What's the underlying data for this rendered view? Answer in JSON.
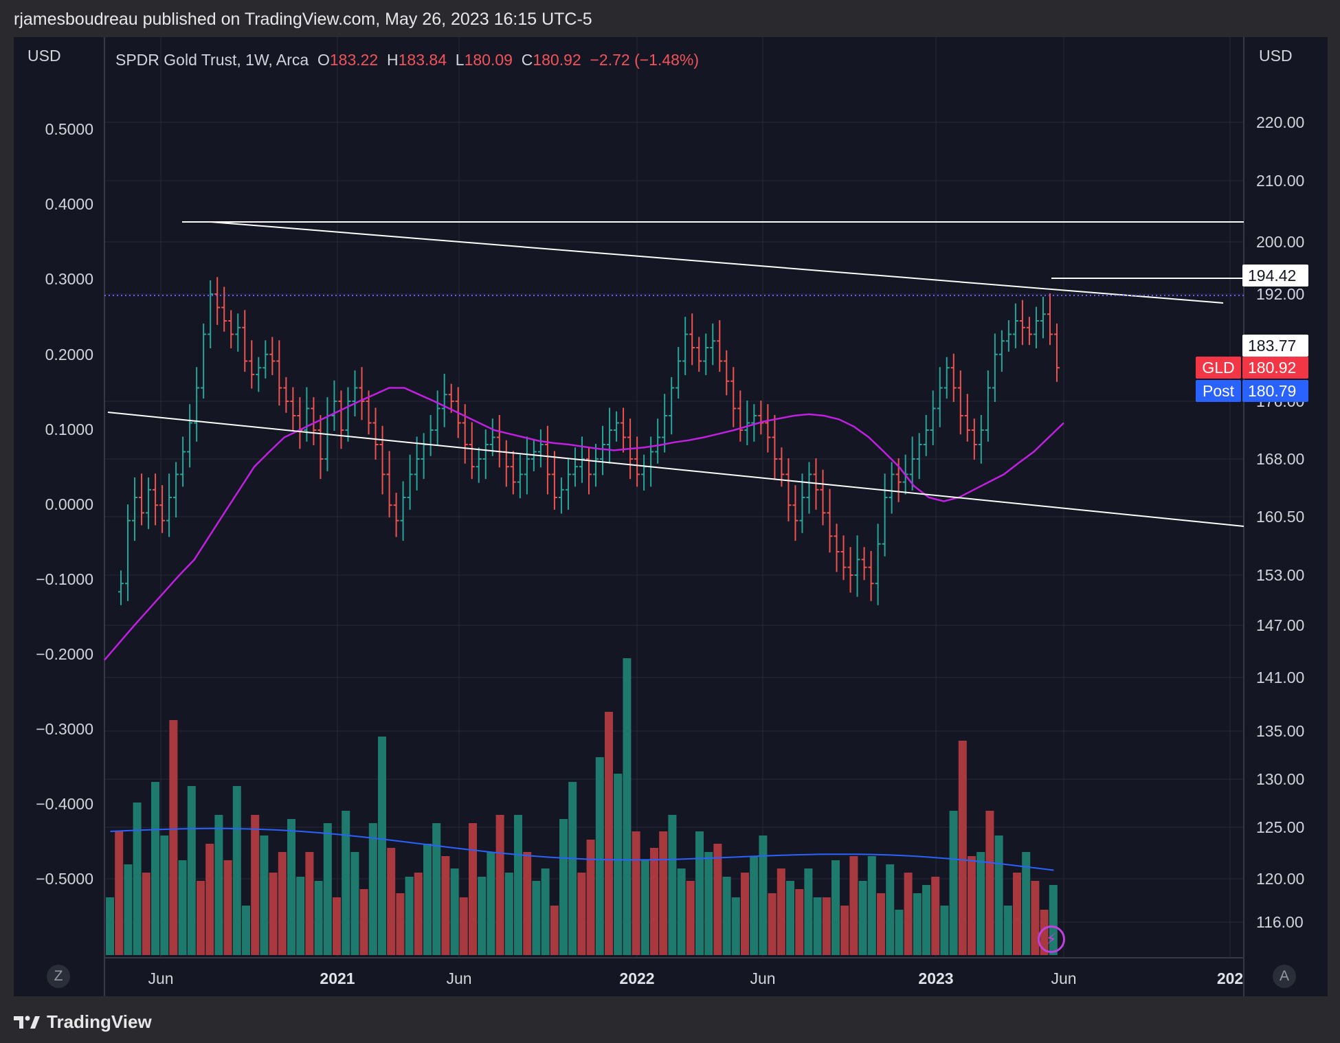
{
  "header": {
    "published_text": "rjamesboudreau published on TradingView.com, May 26, 2023 16:15 UTC-5"
  },
  "footer": {
    "brand": "TradingView"
  },
  "legend": {
    "symbol": "SPDR Gold Trust, 1W, Arca",
    "o_label": "O",
    "o_value": "183.22",
    "h_label": "H",
    "h_value": "183.84",
    "l_label": "L",
    "l_value": "180.09",
    "c_label": "C",
    "c_value": "180.92",
    "change": "−2.72 (−1.48%)"
  },
  "axes": {
    "left_unit": "USD",
    "right_unit": "USD",
    "z_button": "Z",
    "a_button": "A"
  },
  "badges": {
    "level_top": "194.42",
    "level_mid": "183.77",
    "gld_label": "GLD",
    "gld_price": "180.92",
    "post_label": "Post",
    "post_price": "180.79"
  },
  "colors": {
    "background": "#141723",
    "up": "#26a69a",
    "down": "#ef5350",
    "up_volume": "#1f7a6e",
    "down_volume": "#a8393f",
    "ma": "#c020e0",
    "volume_ma": "#2962ff",
    "trendline": "#ffffff",
    "gld_badge": "#f23645",
    "post_badge": "#2962ff"
  },
  "icons": {
    "flash": "lightning-icon",
    "logo": "tradingview-logo-icon"
  },
  "chart_data": {
    "type": "ohlc",
    "title": "SPDR Gold Trust, 1W, Arca",
    "interval": "1W",
    "x_ticks": [
      "Jun",
      "2021",
      "Jun",
      "2022",
      "Jun",
      "2023",
      "Jun",
      "202"
    ],
    "right_ticks": [
      "220.00",
      "210.00",
      "200.00",
      "192.00",
      "176.00",
      "168.00",
      "160.50",
      "153.00",
      "147.00",
      "141.00",
      "135.00",
      "130.00",
      "125.00",
      "120.00",
      "116.00"
    ],
    "left_ticks": [
      "0.5000",
      "0.4000",
      "0.3000",
      "0.2000",
      "0.1000",
      "0.0000",
      "−0.1000",
      "−0.2000",
      "−0.3000",
      "−0.4000",
      "−0.5000"
    ],
    "last_price": 180.92,
    "post_price": 180.79,
    "horizontal_levels": [
      194.42,
      183.77
    ],
    "close_path": [
      152,
      160,
      163,
      161,
      164,
      162,
      160,
      163,
      166,
      169,
      173,
      178,
      186,
      192,
      190,
      188,
      186,
      187,
      182,
      180,
      181,
      183,
      182,
      178,
      176,
      174,
      172,
      175,
      172,
      168,
      174,
      176,
      172,
      176,
      178,
      176,
      173,
      170,
      166,
      162,
      160,
      163,
      166,
      168,
      170,
      172,
      175,
      177,
      176,
      173,
      170,
      167,
      168,
      170,
      171,
      169,
      167,
      165,
      166,
      168,
      169,
      170,
      166,
      163,
      164,
      166,
      167,
      168,
      166,
      168,
      170,
      172,
      173,
      171,
      168,
      166,
      167,
      169,
      171,
      174,
      178,
      182,
      186,
      184,
      182,
      184,
      185,
      182,
      179,
      175,
      172,
      173,
      174,
      173,
      171,
      168,
      166,
      162,
      160,
      163,
      166,
      164,
      161,
      158,
      156,
      154,
      153,
      155,
      154,
      152,
      157,
      163,
      166,
      165,
      166,
      168,
      170,
      172,
      175,
      178,
      181,
      178,
      174,
      172,
      170,
      172,
      178,
      183,
      185,
      186,
      188,
      187,
      186,
      188,
      189,
      186,
      181
    ],
    "ma_path": [
      143,
      145,
      147,
      149,
      151,
      153,
      155,
      158,
      161,
      164,
      167,
      169,
      171,
      172,
      173,
      174,
      175,
      176,
      177,
      178,
      178,
      177,
      176,
      175,
      174,
      173,
      172,
      171.5,
      171,
      170.5,
      170.2,
      170,
      169.7,
      169.4,
      169.2,
      169.4,
      169.6,
      169.9,
      170.3,
      170.6,
      171,
      171.5,
      172,
      172.6,
      173.2,
      173.6,
      174,
      174.2,
      174,
      173.5,
      172.5,
      171,
      169,
      167,
      164.5,
      163,
      162.5,
      163,
      164,
      165,
      166,
      167.5,
      169,
      171,
      173
    ],
    "volume_levels": [
      0.14,
      0.3,
      0.22,
      0.37,
      0.2,
      0.42,
      0.29,
      0.57,
      0.23,
      0.41,
      0.18,
      0.27,
      0.34,
      0.23,
      0.41,
      0.12,
      0.34,
      0.29,
      0.2,
      0.25,
      0.33,
      0.19,
      0.25,
      0.18,
      0.32,
      0.14,
      0.35,
      0.25,
      0.16,
      0.32,
      0.53,
      0.26,
      0.15,
      0.19,
      0.2,
      0.27,
      0.32,
      0.24,
      0.21,
      0.14,
      0.32,
      0.19,
      0.25,
      0.34,
      0.2,
      0.34,
      0.25,
      0.18,
      0.21,
      0.12,
      0.33,
      0.42,
      0.2,
      0.28,
      0.48,
      0.59,
      0.44,
      0.72,
      0.3,
      0.23,
      0.26,
      0.3,
      0.34,
      0.21,
      0.18,
      0.3,
      0.25,
      0.27,
      0.19,
      0.14,
      0.2,
      0.24,
      0.29,
      0.15,
      0.21,
      0.18,
      0.16,
      0.21,
      0.14,
      0.14,
      0.23,
      0.12,
      0.24,
      0.18,
      0.24,
      0.15,
      0.22,
      0.11,
      0.2,
      0.15,
      0.17,
      0.19,
      0.12,
      0.35,
      0.52,
      0.24,
      0.25,
      0.35,
      0.29,
      0.12,
      0.2,
      0.25,
      0.18,
      0.11,
      0.17
    ],
    "volume_ma": 0.3
  }
}
